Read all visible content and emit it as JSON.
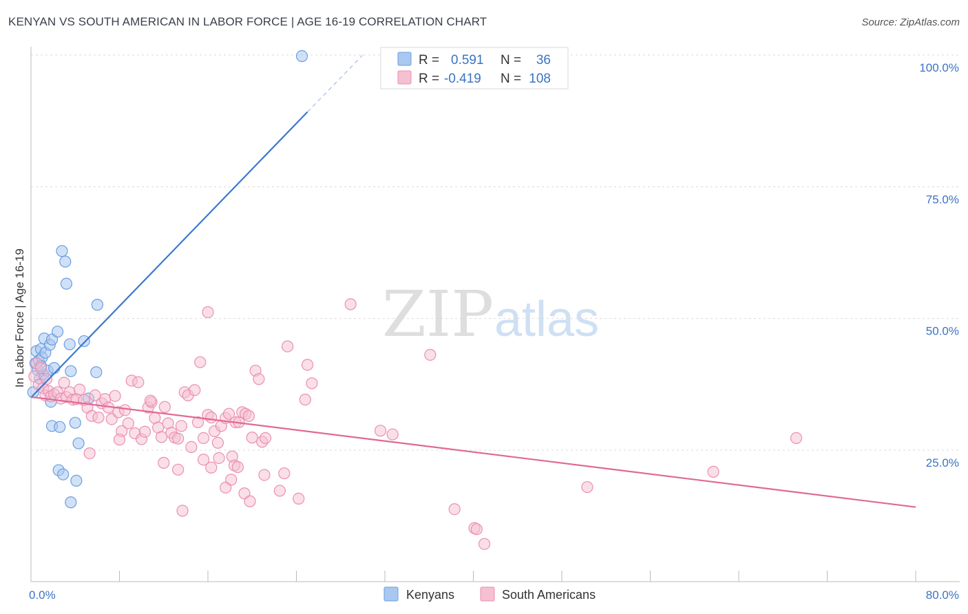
{
  "header": {
    "title": "KENYAN VS SOUTH AMERICAN IN LABOR FORCE | AGE 16-19 CORRELATION CHART",
    "source": "Source: ZipAtlas.com"
  },
  "watermark": {
    "zip": "ZIP",
    "atlas": "atlas"
  },
  "legend_top": [
    {
      "r_label": "R =",
      "r_value": "0.591",
      "n_label": "N =",
      "n_value": "36"
    },
    {
      "r_label": "R =",
      "r_value": "-0.419",
      "n_label": "N =",
      "n_value": "108"
    }
  ],
  "legend_bottom": {
    "kenyans": "Kenyans",
    "south_americans": "South Americans"
  },
  "colors": {
    "kenyan_fill": "#a9c8f0",
    "kenyan_stroke": "#6a9ee0",
    "kenyan_line": "#3a78d0",
    "sa_fill": "#f6bfd2",
    "sa_stroke": "#ea8fb0",
    "sa_line": "#e06894",
    "grid": "#d9d9d9",
    "axis_label": "#3b73c4"
  },
  "chart_data": {
    "type": "scatter",
    "title": "KENYAN VS SOUTH AMERICAN IN LABOR FORCE | AGE 16-19 CORRELATION CHART",
    "xlabel": "",
    "ylabel": "In Labor Force | Age 16-19",
    "xlim": [
      0,
      80
    ],
    "ylim": [
      0,
      105
    ],
    "x_tick_labels": [
      "0.0%",
      "80.0%"
    ],
    "y_ticks": [
      25,
      50,
      75,
      100
    ],
    "y_tick_labels": [
      "25.0%",
      "50.0%",
      "75.0%",
      "100.0%"
    ],
    "series": [
      {
        "name": "Kenyans",
        "n": 36,
        "r": 0.591,
        "trend": {
          "x": [
            0,
            25.0
          ],
          "y": [
            35.0,
            89.2
          ],
          "dashed_to": [
            30.0,
            100.0
          ]
        },
        "points": [
          [
            0.2,
            36.0
          ],
          [
            0.4,
            41.5
          ],
          [
            0.5,
            43.8
          ],
          [
            0.6,
            40.2
          ],
          [
            0.7,
            42.0
          ],
          [
            0.8,
            38.6
          ],
          [
            0.9,
            44.2
          ],
          [
            1.0,
            42.6
          ],
          [
            1.1,
            39.4
          ],
          [
            1.2,
            46.2
          ],
          [
            1.3,
            43.5
          ],
          [
            1.5,
            40.1
          ],
          [
            1.7,
            45.0
          ],
          [
            1.8,
            34.2
          ],
          [
            1.9,
            46.0
          ],
          [
            2.1,
            40.6
          ],
          [
            2.4,
            47.5
          ],
          [
            1.9,
            29.6
          ],
          [
            2.6,
            29.4
          ],
          [
            2.8,
            62.8
          ],
          [
            3.1,
            60.8
          ],
          [
            3.2,
            56.6
          ],
          [
            3.5,
            45.1
          ],
          [
            3.6,
            40.0
          ],
          [
            4.0,
            30.2
          ],
          [
            4.3,
            26.3
          ],
          [
            4.8,
            45.7
          ],
          [
            5.2,
            34.8
          ],
          [
            5.9,
            39.8
          ],
          [
            6.0,
            52.6
          ],
          [
            2.5,
            21.2
          ],
          [
            2.9,
            20.4
          ],
          [
            4.1,
            19.2
          ],
          [
            3.6,
            15.1
          ],
          [
            24.5,
            99.8
          ],
          [
            0.9,
            41.0
          ]
        ]
      },
      {
        "name": "South Americans",
        "n": 108,
        "r": -0.419,
        "trend": {
          "x": [
            0,
            80
          ],
          "y": [
            35.1,
            14.2
          ]
        },
        "points": [
          [
            0.3,
            39.0
          ],
          [
            0.5,
            41.5
          ],
          [
            0.7,
            37.4
          ],
          [
            0.9,
            40.6
          ],
          [
            1.1,
            36.8
          ],
          [
            1.3,
            35.4
          ],
          [
            1.4,
            38.5
          ],
          [
            1.6,
            36.2
          ],
          [
            1.8,
            35.2
          ],
          [
            2.1,
            35.6
          ],
          [
            2.4,
            36.0
          ],
          [
            2.7,
            34.8
          ],
          [
            3.0,
            37.8
          ],
          [
            3.2,
            35.1
          ],
          [
            3.5,
            36.0
          ],
          [
            3.8,
            34.6
          ],
          [
            4.1,
            34.7
          ],
          [
            4.4,
            36.5
          ],
          [
            4.8,
            34.5
          ],
          [
            5.1,
            33.1
          ],
          [
            5.5,
            31.5
          ],
          [
            5.8,
            35.4
          ],
          [
            6.1,
            31.2
          ],
          [
            6.4,
            33.9
          ],
          [
            6.7,
            34.7
          ],
          [
            7.0,
            33.1
          ],
          [
            7.3,
            30.9
          ],
          [
            7.6,
            35.3
          ],
          [
            7.9,
            32.2
          ],
          [
            8.2,
            28.6
          ],
          [
            8.5,
            32.6
          ],
          [
            8.8,
            30.1
          ],
          [
            9.1,
            38.2
          ],
          [
            9.4,
            28.2
          ],
          [
            9.7,
            37.9
          ],
          [
            10.0,
            27.1
          ],
          [
            10.3,
            28.5
          ],
          [
            10.6,
            33.1
          ],
          [
            10.9,
            34.1
          ],
          [
            11.2,
            31.1
          ],
          [
            11.5,
            29.3
          ],
          [
            11.8,
            27.5
          ],
          [
            12.1,
            33.2
          ],
          [
            12.4,
            30.1
          ],
          [
            12.7,
            28.3
          ],
          [
            13.0,
            27.4
          ],
          [
            13.3,
            27.2
          ],
          [
            13.6,
            29.6
          ],
          [
            13.9,
            36.0
          ],
          [
            14.2,
            35.4
          ],
          [
            14.5,
            25.6
          ],
          [
            14.8,
            36.4
          ],
          [
            15.1,
            30.3
          ],
          [
            15.3,
            41.7
          ],
          [
            15.6,
            27.3
          ],
          [
            16.0,
            31.7
          ],
          [
            16.3,
            31.2
          ],
          [
            16.6,
            28.6
          ],
          [
            16.9,
            26.4
          ],
          [
            17.2,
            29.6
          ],
          [
            17.6,
            31.1
          ],
          [
            17.9,
            31.9
          ],
          [
            18.2,
            23.8
          ],
          [
            18.5,
            30.3
          ],
          [
            18.8,
            30.3
          ],
          [
            19.1,
            32.2
          ],
          [
            19.4,
            31.9
          ],
          [
            19.7,
            31.5
          ],
          [
            20.0,
            27.4
          ],
          [
            20.3,
            40.1
          ],
          [
            20.6,
            38.5
          ],
          [
            20.9,
            26.6
          ],
          [
            21.2,
            27.3
          ],
          [
            15.6,
            23.2
          ],
          [
            16.3,
            21.7
          ],
          [
            12.0,
            22.6
          ],
          [
            13.7,
            13.5
          ],
          [
            17.0,
            23.5
          ],
          [
            17.6,
            17.9
          ],
          [
            18.1,
            19.4
          ],
          [
            18.4,
            22.1
          ],
          [
            18.7,
            21.8
          ],
          [
            19.3,
            16.8
          ],
          [
            19.8,
            15.3
          ],
          [
            21.1,
            20.3
          ],
          [
            22.5,
            17.3
          ],
          [
            22.9,
            20.6
          ],
          [
            24.2,
            15.8
          ],
          [
            25.0,
            41.2
          ],
          [
            23.2,
            44.7
          ],
          [
            25.4,
            37.7
          ],
          [
            24.8,
            34.6
          ],
          [
            28.9,
            52.7
          ],
          [
            31.6,
            28.7
          ],
          [
            32.7,
            28.0
          ],
          [
            36.1,
            43.1
          ],
          [
            38.3,
            13.8
          ],
          [
            40.1,
            10.2
          ],
          [
            40.3,
            10.0
          ],
          [
            41.0,
            7.2
          ],
          [
            50.3,
            18.0
          ],
          [
            61.7,
            20.9
          ],
          [
            69.2,
            27.3
          ],
          [
            13.3,
            21.3
          ],
          [
            16.0,
            51.2
          ],
          [
            10.8,
            34.4
          ],
          [
            5.3,
            24.4
          ],
          [
            8.0,
            27.0
          ]
        ]
      }
    ]
  }
}
